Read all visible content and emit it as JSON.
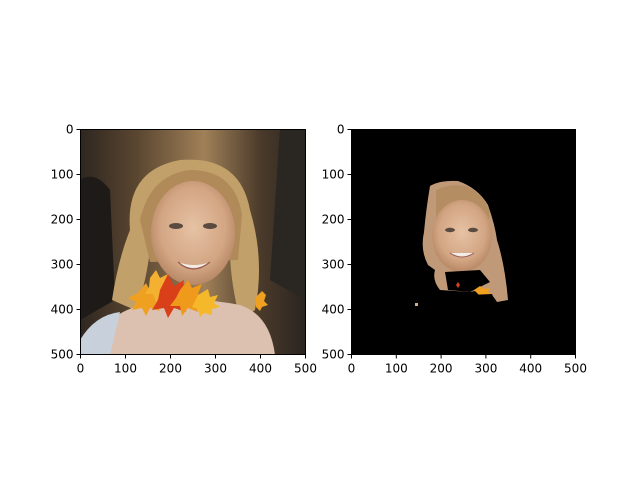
{
  "panels": [
    {
      "name": "left",
      "description_free": true,
      "xticks": [
        "0",
        "100",
        "200",
        "300",
        "400",
        "500"
      ],
      "yticks": [
        "0",
        "100",
        "200",
        "300",
        "400",
        "500"
      ],
      "xlim": [
        0,
        500
      ],
      "ylim": [
        500,
        0
      ]
    },
    {
      "name": "right",
      "xticks": [
        "0",
        "100",
        "200",
        "300",
        "400",
        "500"
      ],
      "yticks": [
        "0",
        "100",
        "200",
        "300",
        "400",
        "500"
      ],
      "xlim": [
        0,
        500
      ],
      "ylim": [
        500,
        0
      ]
    }
  ],
  "colors": {
    "background": "#ffffff",
    "mask_background": "#000000",
    "axis": "#000000",
    "skin": "#d9b39a",
    "hair": "#c9a46c",
    "leaf_orange": "#f0a020",
    "leaf_red": "#d9401a"
  }
}
